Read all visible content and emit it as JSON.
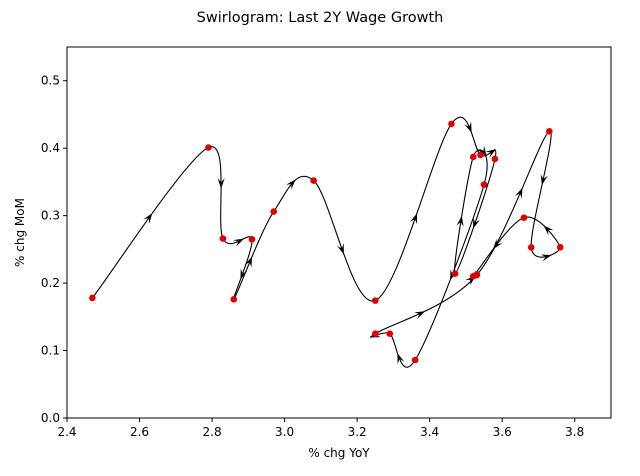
{
  "chart_data": {
    "type": "scatter",
    "title": "Swirlogram: Last 2Y Wage Growth",
    "xlabel": "% chg YoY",
    "ylabel": "% chg MoM",
    "xlim": [
      2.4,
      3.9
    ],
    "ylim": [
      0.0,
      0.55
    ],
    "xticks": [
      "2.4",
      "2.6",
      "2.8",
      "3.0",
      "3.2",
      "3.4",
      "3.6",
      "3.8"
    ],
    "yticks": [
      "0.0",
      "0.1",
      "0.2",
      "0.3",
      "0.4",
      "0.5"
    ],
    "grid": false,
    "point_color": "#e00000",
    "line_color": "#000000",
    "series": [
      {
        "x": [
          2.47,
          2.79,
          2.83,
          2.91,
          2.86,
          2.97,
          3.08,
          3.25,
          3.46,
          3.54,
          3.58,
          3.47,
          3.52,
          3.55,
          3.36,
          3.29,
          3.25,
          3.53,
          3.73,
          3.68,
          3.76,
          3.66,
          3.52,
          3.53
        ],
        "y": [
          0.178,
          0.401,
          0.266,
          0.265,
          0.176,
          0.306,
          0.352,
          0.174,
          0.436,
          0.39,
          0.384,
          0.214,
          0.387,
          0.346,
          0.086,
          0.125,
          0.125,
          0.212,
          0.425,
          0.253,
          0.253,
          0.297,
          0.21,
          0.213
        ]
      }
    ]
  }
}
